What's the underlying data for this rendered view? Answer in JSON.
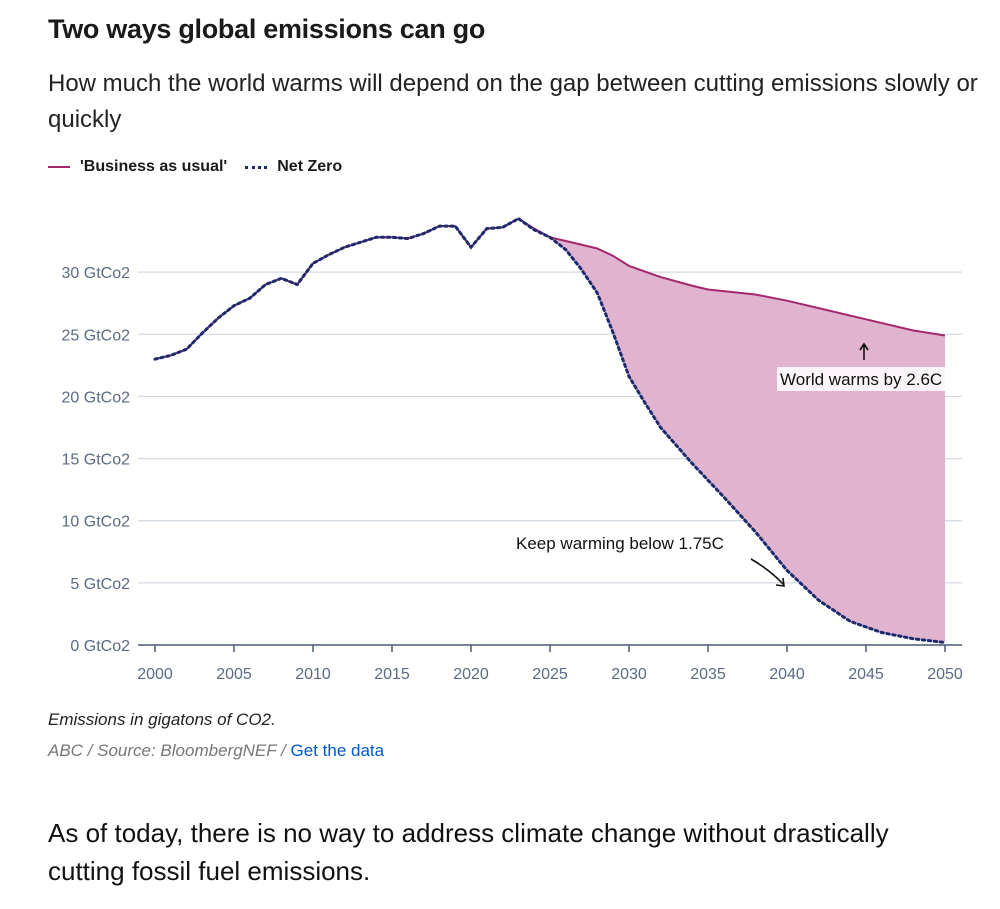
{
  "title": "Two ways global emissions can go",
  "subtitle": "How much the world warms will depend on the gap between cutting emissions slowly or quickly",
  "legend": [
    {
      "label": "'Business as usual'",
      "color": "#a3286e",
      "style": "solid"
    },
    {
      "label": "Net Zero",
      "color": "#1e2a6e",
      "style": "dotted"
    }
  ],
  "note": "Emissions in gigatons of CO2.",
  "source": {
    "text": "ABC / Source: BloombergNEF /",
    "link": "Get the data"
  },
  "body_text": "As of today, there is no way to address climate change without drastically cutting fossil fuel emissions.",
  "chart_data": {
    "type": "line",
    "xlim": [
      2000,
      2050
    ],
    "ylim": [
      0,
      34
    ],
    "x_ticks": [
      2000,
      2005,
      2010,
      2015,
      2020,
      2025,
      2030,
      2035,
      2040,
      2045,
      2050
    ],
    "y_ticks": [
      0,
      5,
      10,
      15,
      20,
      25,
      30
    ],
    "y_tick_labels": [
      "0 GtCo2",
      "5 GtCo2",
      "10 GtCo2",
      "15 GtCo2",
      "20 GtCo2",
      "25 GtCo2",
      "30 GtCo2"
    ],
    "grid": "horizontal",
    "fill_between": {
      "color": "#e0b3cf",
      "from": 2025,
      "to": 2050
    },
    "series": [
      {
        "name": "'Business as usual'",
        "color": "#a3286e",
        "points": [
          [
            2000,
            23.0
          ],
          [
            2001,
            23.3
          ],
          [
            2002,
            23.8
          ],
          [
            2003,
            25.1
          ],
          [
            2004,
            26.3
          ],
          [
            2005,
            27.3
          ],
          [
            2006,
            27.9
          ],
          [
            2007,
            29.0
          ],
          [
            2008,
            29.5
          ],
          [
            2009,
            29.0
          ],
          [
            2010,
            30.7
          ],
          [
            2011,
            31.4
          ],
          [
            2012,
            32.0
          ],
          [
            2013,
            32.4
          ],
          [
            2014,
            32.8
          ],
          [
            2015,
            32.8
          ],
          [
            2016,
            32.7
          ],
          [
            2017,
            33.1
          ],
          [
            2018,
            33.7
          ],
          [
            2019,
            33.7
          ],
          [
            2020,
            32.0
          ],
          [
            2021,
            33.5
          ],
          [
            2022,
            33.6
          ],
          [
            2023,
            34.3
          ],
          [
            2024,
            33.5
          ],
          [
            2025,
            32.8
          ],
          [
            2026,
            32.5
          ],
          [
            2028,
            31.9
          ],
          [
            2029,
            31.3
          ],
          [
            2030,
            30.5
          ],
          [
            2032,
            29.6
          ],
          [
            2034,
            28.9
          ],
          [
            2035,
            28.6
          ],
          [
            2038,
            28.2
          ],
          [
            2040,
            27.7
          ],
          [
            2042,
            27.1
          ],
          [
            2045,
            26.2
          ],
          [
            2048,
            25.3
          ],
          [
            2050,
            24.9
          ]
        ]
      },
      {
        "name": "Net Zero",
        "color": "#1e2a6e",
        "points": [
          [
            2000,
            23.0
          ],
          [
            2001,
            23.3
          ],
          [
            2002,
            23.8
          ],
          [
            2003,
            25.1
          ],
          [
            2004,
            26.3
          ],
          [
            2005,
            27.3
          ],
          [
            2006,
            27.9
          ],
          [
            2007,
            29.0
          ],
          [
            2008,
            29.5
          ],
          [
            2009,
            29.0
          ],
          [
            2010,
            30.7
          ],
          [
            2011,
            31.4
          ],
          [
            2012,
            32.0
          ],
          [
            2013,
            32.4
          ],
          [
            2014,
            32.8
          ],
          [
            2015,
            32.8
          ],
          [
            2016,
            32.7
          ],
          [
            2017,
            33.1
          ],
          [
            2018,
            33.7
          ],
          [
            2019,
            33.7
          ],
          [
            2020,
            32.0
          ],
          [
            2021,
            33.5
          ],
          [
            2022,
            33.6
          ],
          [
            2023,
            34.3
          ],
          [
            2024,
            33.4
          ],
          [
            2025,
            32.8
          ],
          [
            2026,
            31.8
          ],
          [
            2027,
            30.2
          ],
          [
            2028,
            28.3
          ],
          [
            2029,
            25.1
          ],
          [
            2030,
            21.6
          ],
          [
            2031,
            19.5
          ],
          [
            2032,
            17.5
          ],
          [
            2034,
            14.6
          ],
          [
            2036,
            11.9
          ],
          [
            2038,
            9.1
          ],
          [
            2040,
            6.0
          ],
          [
            2042,
            3.6
          ],
          [
            2044,
            1.9
          ],
          [
            2046,
            1.0
          ],
          [
            2048,
            0.5
          ],
          [
            2050,
            0.2
          ]
        ]
      }
    ],
    "annotations": [
      {
        "text": "World warms by 2.6C",
        "series": "'Business as usual'"
      },
      {
        "text": "Keep warming below 1.75C",
        "series": "Net Zero"
      }
    ]
  }
}
